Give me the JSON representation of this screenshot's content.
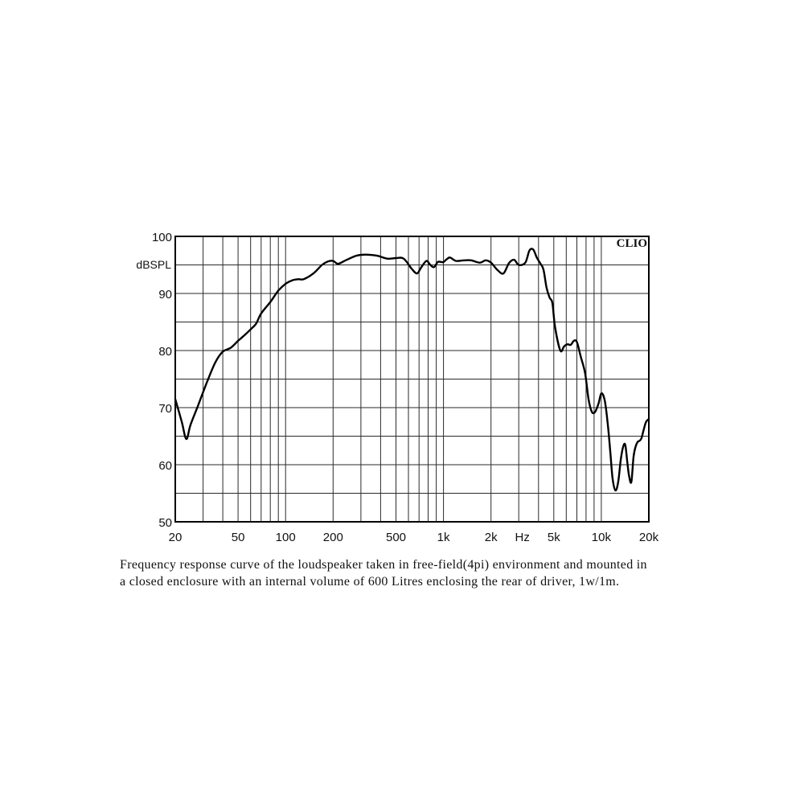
{
  "chart_data": {
    "type": "line",
    "title": "",
    "xlabel": "Hz",
    "ylabel": "dBSPL",
    "brand": "CLIO",
    "x_scale": "log",
    "xlim": [
      20,
      20000
    ],
    "ylim": [
      50,
      100
    ],
    "grid": true,
    "x_ticks": [
      {
        "value": 20,
        "label": "20"
      },
      {
        "value": 50,
        "label": "50"
      },
      {
        "value": 100,
        "label": "100"
      },
      {
        "value": 200,
        "label": "200"
      },
      {
        "value": 500,
        "label": "500"
      },
      {
        "value": 1000,
        "label": "1k"
      },
      {
        "value": 2000,
        "label": "2k"
      },
      {
        "value": 5000,
        "label": "5k"
      },
      {
        "value": 10000,
        "label": "10k"
      },
      {
        "value": 20000,
        "label": "20k"
      }
    ],
    "y_ticks": [
      {
        "value": 100,
        "label": "100"
      },
      {
        "value": 90,
        "label": "90"
      },
      {
        "value": 80,
        "label": "80"
      },
      {
        "value": 70,
        "label": "70"
      },
      {
        "value": 60,
        "label": "60"
      },
      {
        "value": 50,
        "label": "50"
      }
    ],
    "series": [
      {
        "x": [
          20,
          22,
          23.5,
          25,
          28,
          32,
          36,
          40,
          45,
          50,
          55,
          60,
          65,
          70,
          80,
          90,
          100,
          110,
          120,
          130,
          150,
          170,
          185,
          200,
          215,
          240,
          280,
          320,
          380,
          440,
          500,
          560,
          630,
          680,
          720,
          780,
          820,
          870,
          920,
          970,
          1000,
          1050,
          1100,
          1200,
          1350,
          1500,
          1700,
          1850,
          2000,
          2200,
          2400,
          2600,
          2800,
          3000,
          3300,
          3500,
          3700,
          3900,
          4100,
          4300,
          4500,
          4700,
          4900,
          5100,
          5500,
          5800,
          6100,
          6400,
          6700,
          7000,
          7400,
          7900,
          8300,
          8700,
          9100,
          9600,
          10000,
          10500,
          11000,
          11400,
          11800,
          12300,
          12800,
          13300,
          13800,
          14200,
          14600,
          15000,
          15500,
          16000,
          16500,
          17000,
          17500,
          18000,
          18500,
          19200,
          20000
        ],
        "y": [
          71.5,
          67.5,
          64.5,
          67,
          70.5,
          74.7,
          78,
          79.8,
          80.5,
          81.7,
          82.7,
          83.7,
          84.7,
          86.5,
          88.5,
          90.5,
          91.7,
          92.3,
          92.5,
          92.5,
          93.5,
          95,
          95.6,
          95.7,
          95.2,
          95.8,
          96.6,
          96.8,
          96.6,
          96.1,
          96.2,
          96.1,
          94.3,
          93.5,
          94.5,
          95.7,
          95.1,
          94.6,
          95.5,
          95.5,
          95.5,
          96,
          96.3,
          95.7,
          95.8,
          95.8,
          95.4,
          95.8,
          95.4,
          94.1,
          93.5,
          95.3,
          95.9,
          95,
          95.4,
          97.5,
          97.7,
          96.3,
          95.3,
          94.2,
          91,
          89.3,
          88.3,
          84,
          80,
          80.7,
          81.1,
          81,
          81.7,
          81.5,
          79,
          76,
          71.5,
          69.3,
          69.2,
          70.7,
          72.5,
          71.3,
          67,
          62.2,
          57.5,
          55.5,
          57,
          61,
          63.3,
          63.4,
          60.5,
          58,
          57,
          61.4,
          63.2,
          64,
          64.2,
          64.7,
          66,
          67.5,
          68
        ]
      }
    ]
  },
  "caption": {
    "line1": "Frequency response curve of the loudspeaker taken in free-field(4pi) environment and mounted in",
    "line2": "a closed enclosure  with an internal volume of 600 Litres enclosing the rear of driver, 1w/1m."
  },
  "colors": {
    "curve": "#000000",
    "grid": "#2a2a2a",
    "frame": "#000000",
    "background": "#ffffff"
  }
}
